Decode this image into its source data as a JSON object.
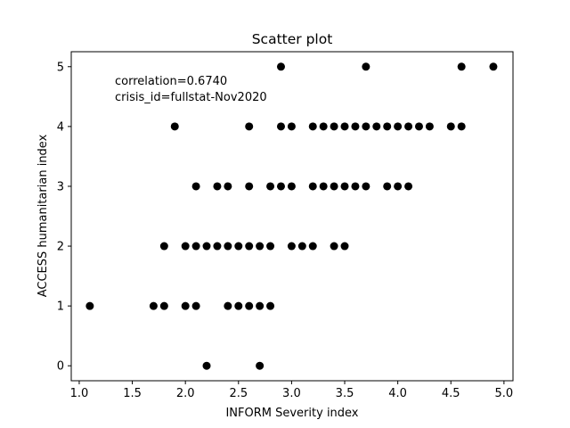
{
  "chart_data": {
    "type": "scatter",
    "title": "Scatter plot",
    "xlabel": "INFORM Severity index",
    "ylabel": "ACCESS humanitarian index",
    "xlim": [
      0.925,
      5.085
    ],
    "ylim": [
      -0.25,
      5.25
    ],
    "xticks": [
      1.0,
      1.5,
      2.0,
      2.5,
      3.0,
      3.5,
      4.0,
      4.5,
      5.0
    ],
    "xtick_labels": [
      "1.0",
      "1.5",
      "2.0",
      "2.5",
      "3.0",
      "3.5",
      "4.0",
      "4.5",
      "5.0"
    ],
    "yticks": [
      0,
      1,
      2,
      3,
      4,
      5
    ],
    "ytick_labels": [
      "0",
      "1",
      "2",
      "3",
      "4",
      "5"
    ],
    "grid": false,
    "marker_color": "#000000",
    "annotations": [
      "correlation=0.6740",
      "crisis_id=fullstat-Nov2020"
    ],
    "points": [
      {
        "x": 2.9,
        "y": 5
      },
      {
        "x": 3.7,
        "y": 5
      },
      {
        "x": 4.6,
        "y": 5
      },
      {
        "x": 4.9,
        "y": 5
      },
      {
        "x": 1.9,
        "y": 4
      },
      {
        "x": 2.6,
        "y": 4
      },
      {
        "x": 2.9,
        "y": 4
      },
      {
        "x": 3.0,
        "y": 4
      },
      {
        "x": 3.2,
        "y": 4
      },
      {
        "x": 3.3,
        "y": 4
      },
      {
        "x": 3.4,
        "y": 4
      },
      {
        "x": 3.5,
        "y": 4
      },
      {
        "x": 3.6,
        "y": 4
      },
      {
        "x": 3.7,
        "y": 4
      },
      {
        "x": 3.8,
        "y": 4
      },
      {
        "x": 3.9,
        "y": 4
      },
      {
        "x": 4.0,
        "y": 4
      },
      {
        "x": 4.1,
        "y": 4
      },
      {
        "x": 4.2,
        "y": 4
      },
      {
        "x": 4.3,
        "y": 4
      },
      {
        "x": 4.5,
        "y": 4
      },
      {
        "x": 4.6,
        "y": 4
      },
      {
        "x": 2.1,
        "y": 3
      },
      {
        "x": 2.3,
        "y": 3
      },
      {
        "x": 2.4,
        "y": 3
      },
      {
        "x": 2.6,
        "y": 3
      },
      {
        "x": 2.8,
        "y": 3
      },
      {
        "x": 2.9,
        "y": 3
      },
      {
        "x": 3.0,
        "y": 3
      },
      {
        "x": 3.2,
        "y": 3
      },
      {
        "x": 3.3,
        "y": 3
      },
      {
        "x": 3.4,
        "y": 3
      },
      {
        "x": 3.5,
        "y": 3
      },
      {
        "x": 3.6,
        "y": 3
      },
      {
        "x": 3.7,
        "y": 3
      },
      {
        "x": 3.9,
        "y": 3
      },
      {
        "x": 4.0,
        "y": 3
      },
      {
        "x": 4.1,
        "y": 3
      },
      {
        "x": 1.8,
        "y": 2
      },
      {
        "x": 2.0,
        "y": 2
      },
      {
        "x": 2.1,
        "y": 2
      },
      {
        "x": 2.2,
        "y": 2
      },
      {
        "x": 2.3,
        "y": 2
      },
      {
        "x": 2.4,
        "y": 2
      },
      {
        "x": 2.5,
        "y": 2
      },
      {
        "x": 2.6,
        "y": 2
      },
      {
        "x": 2.7,
        "y": 2
      },
      {
        "x": 2.8,
        "y": 2
      },
      {
        "x": 3.0,
        "y": 2
      },
      {
        "x": 3.1,
        "y": 2
      },
      {
        "x": 3.2,
        "y": 2
      },
      {
        "x": 3.4,
        "y": 2
      },
      {
        "x": 3.5,
        "y": 2
      },
      {
        "x": 1.1,
        "y": 1
      },
      {
        "x": 1.7,
        "y": 1
      },
      {
        "x": 1.8,
        "y": 1
      },
      {
        "x": 2.0,
        "y": 1
      },
      {
        "x": 2.1,
        "y": 1
      },
      {
        "x": 2.4,
        "y": 1
      },
      {
        "x": 2.5,
        "y": 1
      },
      {
        "x": 2.6,
        "y": 1
      },
      {
        "x": 2.7,
        "y": 1
      },
      {
        "x": 2.8,
        "y": 1
      },
      {
        "x": 2.2,
        "y": 0
      },
      {
        "x": 2.7,
        "y": 0
      }
    ]
  }
}
